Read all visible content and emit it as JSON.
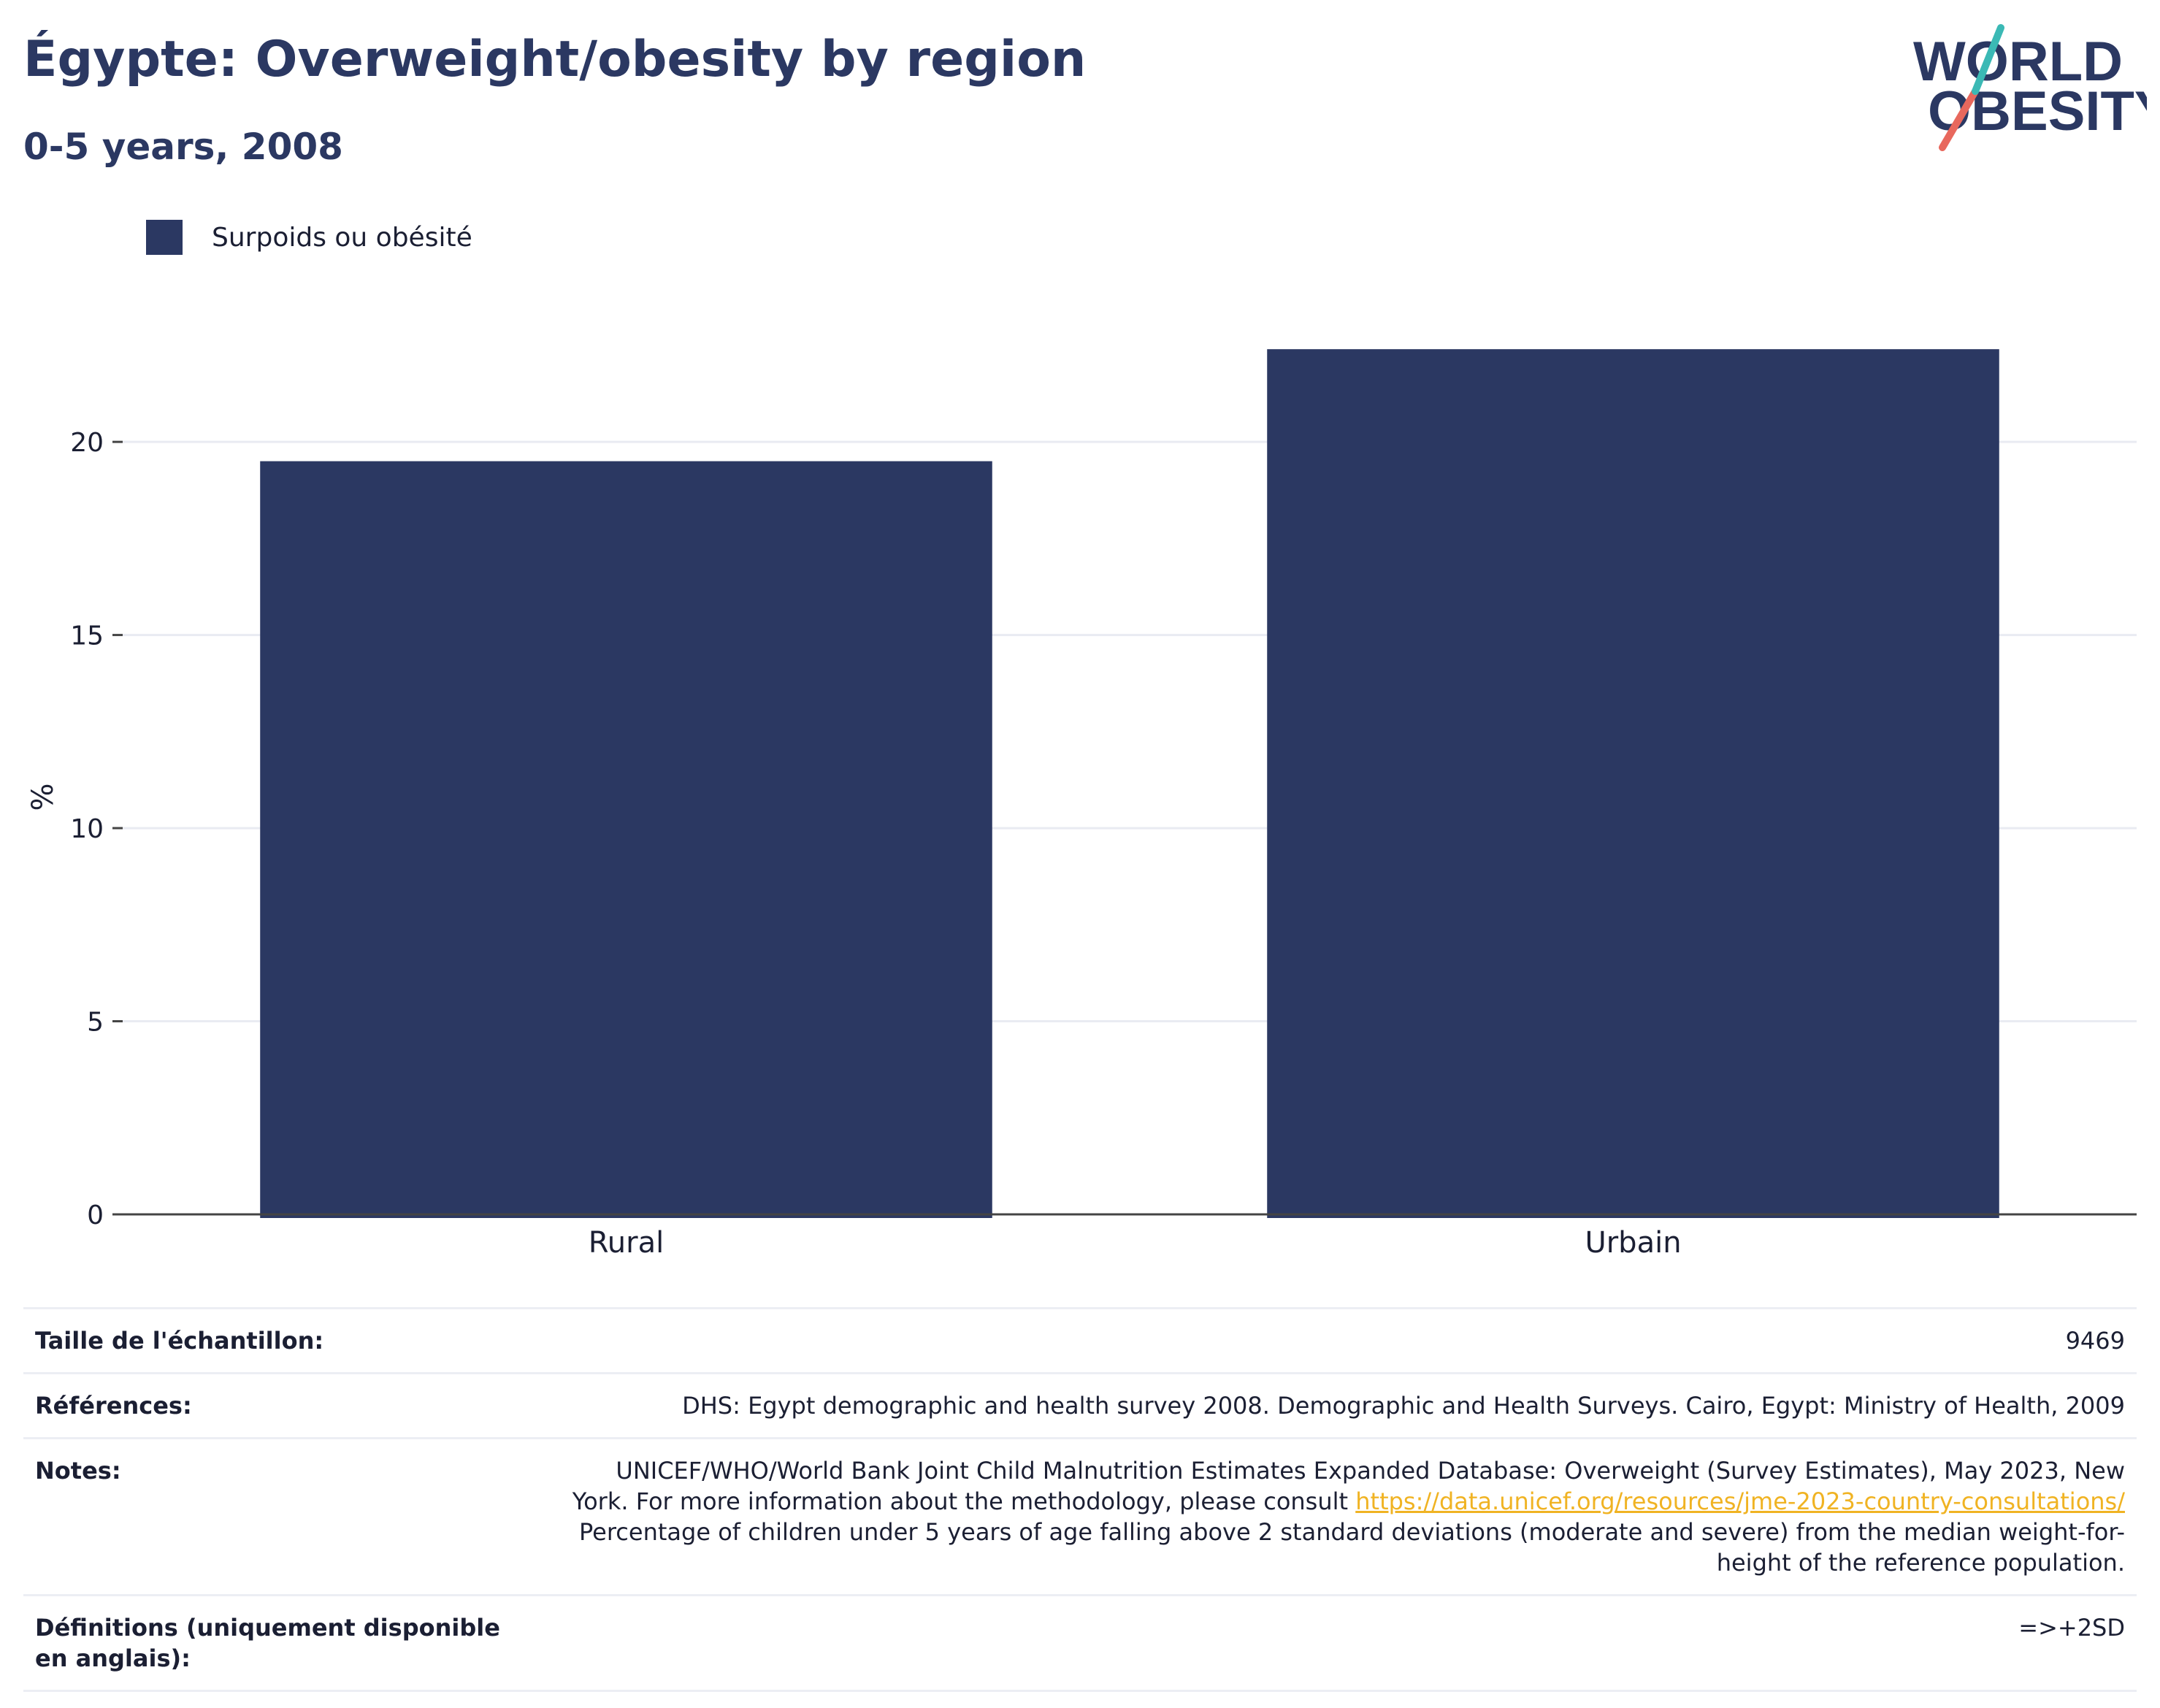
{
  "header": {
    "title": "Égypte: Overweight/obesity by region",
    "subtitle": "0-5 years, 2008"
  },
  "logo": {
    "line1": "WORLD",
    "line2": "OBESITY"
  },
  "colors": {
    "bar": "#2b3862",
    "accent_teal": "#3bb9b5",
    "accent_coral": "#e8685d",
    "grid": "#e9ebf2"
  },
  "chart_data": {
    "type": "bar",
    "categories": [
      "Rural",
      "Urbain"
    ],
    "series": [
      {
        "name": "Surpoids ou obésité",
        "values": [
          19.5,
          22.4
        ]
      }
    ],
    "ylabel": "%",
    "ylim": [
      0,
      23.5
    ],
    "yticks": [
      0,
      5,
      10,
      15,
      20
    ],
    "grid": true,
    "legend": "top-left"
  },
  "info": {
    "sample_label": "Taille de l'échantillon:",
    "sample_value": "9469",
    "references_label": "Références:",
    "references_value": "DHS: Egypt demographic and health survey 2008. Demographic and Health Surveys. Cairo, Egypt: Ministry of Health, 2009",
    "notes_label": "Notes:",
    "notes_text_1": "UNICEF/WHO/World Bank Joint Child Malnutrition Estimates Expanded Database: Overweight (Survey Estimates), May 2023, New York. For more information about the methodology, please consult ",
    "notes_link": "https://data.unicef.org/resources/jme-2023-country-consultations/",
    "notes_text_2": "Percentage of children under 5 years of age falling above 2 standard deviations (moderate and severe) from the median weight-for-height of the reference population.",
    "definitions_label": "Définitions (uniquement disponible en anglais):",
    "definitions_value": "=>+2SD"
  }
}
